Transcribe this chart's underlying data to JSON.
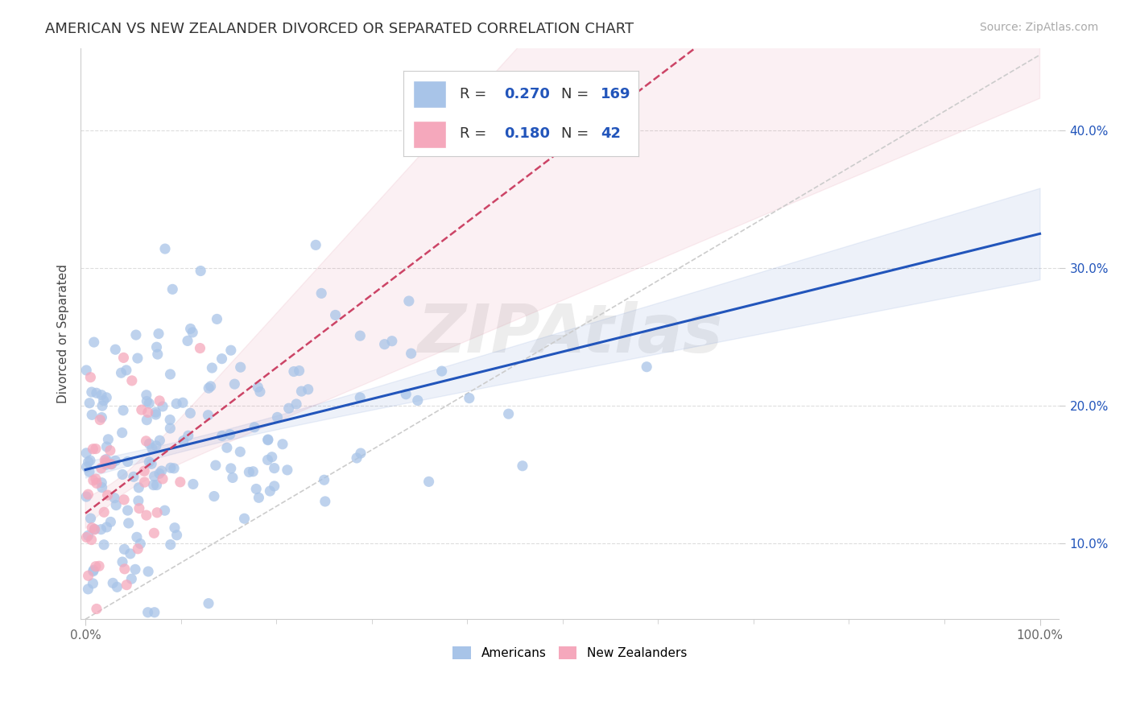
{
  "title": "AMERICAN VS NEW ZEALANDER DIVORCED OR SEPARATED CORRELATION CHART",
  "source": "Source: ZipAtlas.com",
  "ylabel": "Divorced or Separated",
  "r_american": 0.27,
  "n_american": 169,
  "r_nz": 0.18,
  "n_nz": 42,
  "american_color": "#a8c4e8",
  "nz_color": "#f5a8bc",
  "american_line_color": "#2255bb",
  "nz_line_color": "#cc4466",
  "watermark": "ZIPAtlas",
  "background_color": "#ffffff",
  "grid_color": "#dddddd",
  "title_fontsize": 13,
  "source_fontsize": 10,
  "xlim_min": -0.005,
  "xlim_max": 1.02,
  "ylim_min": 0.045,
  "ylim_max": 0.46,
  "yticks": [
    0.1,
    0.2,
    0.3,
    0.4
  ],
  "ytick_labels": [
    "10.0%",
    "20.0%",
    "30.0%",
    "40.0%"
  ],
  "xtick_positions": [
    0.0,
    1.0
  ],
  "xtick_labels": [
    "0.0%",
    "100.0%"
  ]
}
